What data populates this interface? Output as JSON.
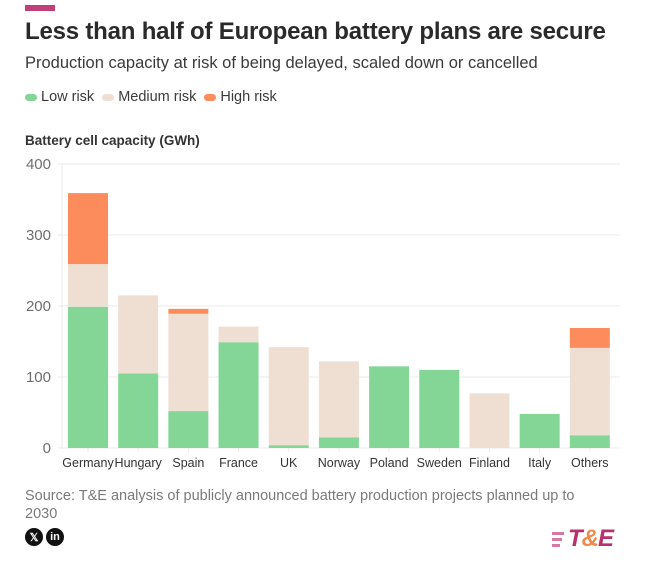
{
  "header": {
    "title": "Less than half of European battery plans are secure",
    "subtitle": "Production capacity at risk of being delayed, scaled down or cancelled"
  },
  "legend": [
    {
      "label": "Low risk",
      "color": "#84d697"
    },
    {
      "label": "Medium risk",
      "color": "#efdfd3"
    },
    {
      "label": "High risk",
      "color": "#fd8c5c"
    }
  ],
  "footer": {
    "source": "Source: T&E analysis of publicly announced battery production projects planned up to 2030",
    "social": [
      "x-icon",
      "linkedin-icon"
    ],
    "logo": {
      "prefix": "T",
      "amp": "&",
      "suffix": "E"
    }
  },
  "colors": {
    "accent": "#c2407a",
    "grid": "#ebebeb",
    "tick_text": "#6e6e6e",
    "label_text": "#333333"
  },
  "chart_data": {
    "type": "bar",
    "stacked": true,
    "title": "Less than half of European battery plans are secure",
    "subtitle": "Production capacity at risk of being delayed, scaled down or cancelled",
    "xlabel": "",
    "ylabel": "Battery cell capacity (GWh)",
    "ylim": [
      0,
      400
    ],
    "yticks": [
      0,
      100,
      200,
      300,
      400
    ],
    "grid": true,
    "legend_position": "top-left",
    "categories": [
      "Germany",
      "Hungary",
      "Spain",
      "France",
      "UK",
      "Norway",
      "Poland",
      "Sweden",
      "Finland",
      "Italy",
      "Others"
    ],
    "series": [
      {
        "name": "Low risk",
        "color": "#84d697",
        "values": [
          199,
          105,
          52,
          149,
          4,
          15,
          115,
          110,
          0,
          48,
          18
        ]
      },
      {
        "name": "Medium risk",
        "color": "#efdfd3",
        "values": [
          60,
          110,
          137,
          22,
          138,
          107,
          0,
          0,
          77,
          0,
          123
        ]
      },
      {
        "name": "High risk",
        "color": "#fd8c5c",
        "values": [
          100,
          0,
          7,
          0,
          0,
          0,
          0,
          0,
          0,
          0,
          28
        ]
      }
    ]
  }
}
